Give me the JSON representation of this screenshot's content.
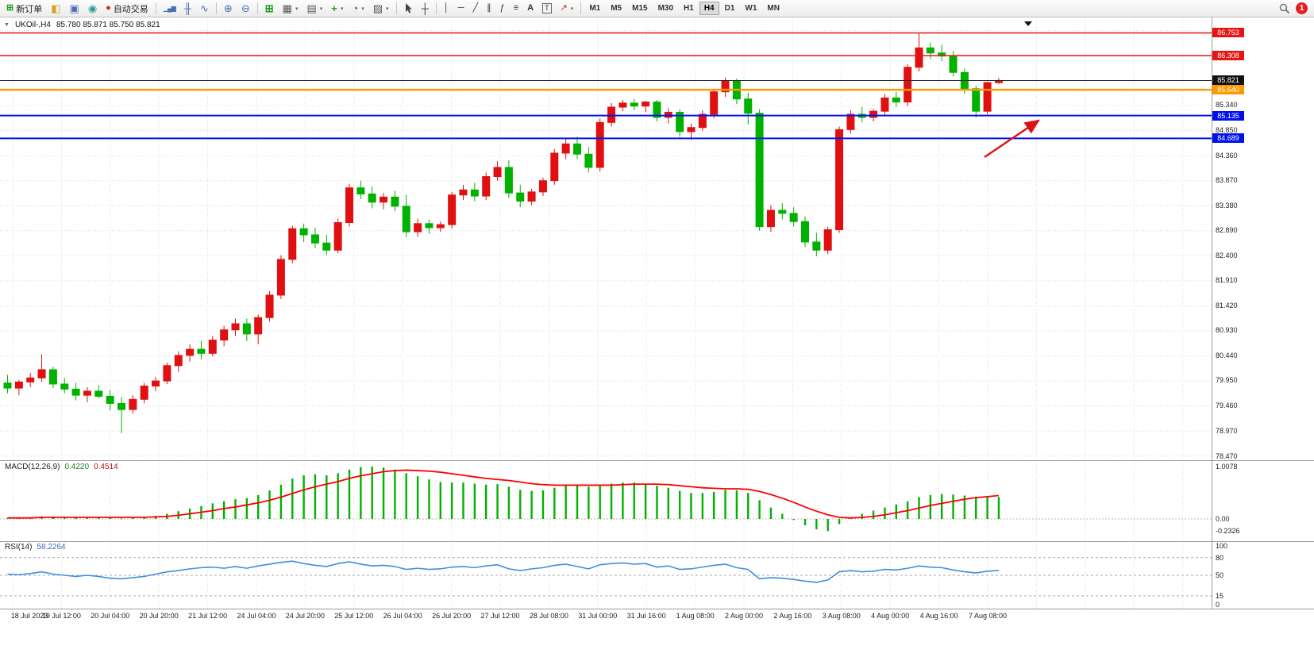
{
  "toolbar": {
    "new_order_label": "新订单",
    "auto_trading_label": "自动交易",
    "timeframes": [
      "M1",
      "M5",
      "M15",
      "M30",
      "H1",
      "H4",
      "D1",
      "W1",
      "MN"
    ],
    "active_timeframe": "H4",
    "notification_count": "1"
  },
  "icons": {
    "new_order": "⊞",
    "market_watch": "◧",
    "navigator": "▣",
    "terminal": "◉",
    "status_dot": "●",
    "bar_chart": "▁▄▆",
    "candlestick": "╫",
    "line_chart": "∿",
    "zoom_in": "⊕",
    "zoom_out": "⊖",
    "tile_windows": "⊞",
    "new_chart": "▦",
    "profiles": "▤",
    "indicators": "+",
    "periods": "◔",
    "templates": "▨",
    "crosshair": "┼",
    "vline": "│",
    "hline": "─",
    "trendline": "╱",
    "channel": "∥",
    "fibonacci": "ƒ",
    "objects_list": "≡",
    "text": "A",
    "text_label": "T",
    "arrows": "↗",
    "caret": "▾",
    "collapse": "▼"
  },
  "chart": {
    "header_symbol": "UKOil-,H4",
    "header_ohlc": "85.780 85.871 85.750 85.821",
    "price_axis": {
      "regular": [
        "85.340",
        "84.850",
        "84.360",
        "83.870",
        "83.380",
        "82.890",
        "82.400",
        "81.910",
        "81.420",
        "80.930",
        "80.440",
        "79.950",
        "79.460",
        "78.970",
        "78.470"
      ],
      "badges": [
        {
          "text": "86.753",
          "bg": "#e81414"
        },
        {
          "text": "86.308",
          "bg": "#e81414"
        },
        {
          "text": "85.821",
          "bg": "#111111"
        },
        {
          "text": "85.640",
          "bg": "#ff9900"
        },
        {
          "text": "85.135",
          "bg": "#0011ee"
        },
        {
          "text": "84.689",
          "bg": "#0011ee"
        }
      ]
    }
  },
  "colors": {
    "up": "#e01010",
    "down": "#00b200",
    "grid": "#dcdcdc",
    "macd_hist": "#00b200",
    "macd_signal": "#ff0000",
    "rsi_line": "#3f8fde",
    "current": "#222222"
  },
  "chart_data": {
    "type": "candlestick",
    "symbol": "UKOil-",
    "timeframe": "H4",
    "ohlc_current": {
      "open": "85.780",
      "high": "85.871",
      "low": "85.750",
      "close": "85.821"
    },
    "y_min": 78.45,
    "y_max": 86.9,
    "current_price": 85.821,
    "levels": [
      {
        "price": 86.753,
        "label": "86.753",
        "color": "#e81414",
        "width": 1.5
      },
      {
        "price": 86.308,
        "label": "86.308",
        "color": "#e81414",
        "width": 1.5
      },
      {
        "price": 85.64,
        "label": "85.640",
        "color": "#ff9900",
        "width": 2.5
      },
      {
        "price": 85.135,
        "label": "85.135",
        "color": "#0011ee",
        "width": 2
      },
      {
        "price": 84.689,
        "label": "84.689",
        "color": "#0011ee",
        "width": 2
      }
    ],
    "arrow": {
      "from": [
        1240,
        176
      ],
      "to": [
        1308,
        130
      ],
      "color": "#dd1111"
    },
    "candles": [
      [
        79.9,
        80.06,
        79.7,
        79.8
      ],
      [
        79.8,
        79.96,
        79.66,
        79.92
      ],
      [
        79.92,
        80.1,
        79.82,
        80.0
      ],
      [
        80.0,
        80.46,
        79.92,
        80.16
      ],
      [
        80.16,
        80.22,
        79.8,
        79.88
      ],
      [
        79.88,
        80.0,
        79.7,
        79.78
      ],
      [
        79.78,
        79.9,
        79.56,
        79.66
      ],
      [
        79.66,
        79.82,
        79.52,
        79.74
      ],
      [
        79.74,
        79.86,
        79.6,
        79.64
      ],
      [
        79.64,
        79.76,
        79.36,
        79.5
      ],
      [
        79.5,
        79.62,
        78.92,
        79.38
      ],
      [
        79.38,
        79.66,
        79.3,
        79.58
      ],
      [
        79.58,
        79.9,
        79.5,
        79.84
      ],
      [
        79.84,
        80.02,
        79.74,
        79.94
      ],
      [
        79.94,
        80.3,
        79.88,
        80.24
      ],
      [
        80.24,
        80.52,
        80.12,
        80.44
      ],
      [
        80.44,
        80.66,
        80.32,
        80.56
      ],
      [
        80.56,
        80.72,
        80.36,
        80.48
      ],
      [
        80.48,
        80.82,
        80.42,
        80.74
      ],
      [
        80.74,
        81.02,
        80.62,
        80.94
      ],
      [
        80.94,
        81.16,
        80.82,
        81.06
      ],
      [
        81.06,
        81.16,
        80.72,
        80.86
      ],
      [
        80.86,
        81.24,
        80.66,
        81.18
      ],
      [
        81.18,
        81.7,
        81.1,
        81.62
      ],
      [
        81.62,
        82.4,
        81.54,
        82.32
      ],
      [
        82.32,
        82.98,
        82.24,
        82.92
      ],
      [
        82.92,
        83.02,
        82.66,
        82.8
      ],
      [
        82.8,
        82.94,
        82.54,
        82.64
      ],
      [
        82.64,
        82.8,
        82.4,
        82.5
      ],
      [
        82.5,
        83.12,
        82.44,
        83.04
      ],
      [
        83.04,
        83.8,
        82.96,
        83.72
      ],
      [
        83.72,
        83.86,
        83.5,
        83.6
      ],
      [
        83.6,
        83.74,
        83.32,
        83.44
      ],
      [
        83.44,
        83.62,
        83.3,
        83.54
      ],
      [
        83.54,
        83.66,
        83.26,
        83.36
      ],
      [
        83.36,
        83.58,
        82.76,
        82.86
      ],
      [
        82.86,
        83.12,
        82.76,
        83.02
      ],
      [
        83.02,
        83.1,
        82.82,
        82.94
      ],
      [
        82.94,
        83.06,
        82.86,
        83.0
      ],
      [
        83.0,
        83.64,
        82.92,
        83.58
      ],
      [
        83.58,
        83.78,
        83.48,
        83.68
      ],
      [
        83.68,
        83.82,
        83.46,
        83.56
      ],
      [
        83.56,
        84.02,
        83.48,
        83.94
      ],
      [
        83.94,
        84.24,
        83.86,
        84.12
      ],
      [
        84.12,
        84.26,
        83.52,
        83.62
      ],
      [
        83.62,
        83.78,
        83.34,
        83.46
      ],
      [
        83.46,
        83.7,
        83.38,
        83.64
      ],
      [
        83.64,
        83.92,
        83.56,
        83.86
      ],
      [
        83.86,
        84.48,
        83.78,
        84.4
      ],
      [
        84.4,
        84.68,
        84.28,
        84.58
      ],
      [
        84.58,
        84.72,
        84.28,
        84.38
      ],
      [
        84.38,
        84.52,
        84.02,
        84.12
      ],
      [
        84.12,
        85.08,
        84.04,
        85.0
      ],
      [
        85.0,
        85.38,
        84.92,
        85.3
      ],
      [
        85.3,
        85.44,
        85.22,
        85.38
      ],
      [
        85.38,
        85.46,
        85.24,
        85.32
      ],
      [
        85.32,
        85.42,
        85.2,
        85.4
      ],
      [
        85.4,
        85.44,
        85.02,
        85.1
      ],
      [
        85.1,
        85.28,
        84.98,
        85.2
      ],
      [
        85.2,
        85.26,
        84.72,
        84.82
      ],
      [
        84.82,
        84.98,
        84.66,
        84.9
      ],
      [
        84.9,
        85.24,
        84.84,
        85.16
      ],
      [
        85.16,
        85.66,
        85.08,
        85.6
      ],
      [
        85.6,
        85.88,
        85.5,
        85.82
      ],
      [
        85.82,
        85.86,
        85.36,
        85.46
      ],
      [
        85.46,
        85.58,
        84.96,
        85.18
      ],
      [
        85.18,
        85.26,
        82.88,
        82.96
      ],
      [
        82.96,
        83.38,
        82.86,
        83.28
      ],
      [
        83.28,
        83.42,
        83.1,
        83.22
      ],
      [
        83.22,
        83.34,
        82.96,
        83.06
      ],
      [
        83.06,
        83.16,
        82.56,
        82.66
      ],
      [
        82.66,
        82.84,
        82.38,
        82.5
      ],
      [
        82.5,
        82.96,
        82.42,
        82.9
      ],
      [
        82.9,
        84.92,
        82.84,
        84.86
      ],
      [
        84.86,
        85.24,
        84.78,
        85.16
      ],
      [
        85.16,
        85.3,
        85.0,
        85.1
      ],
      [
        85.1,
        85.26,
        85.02,
        85.22
      ],
      [
        85.22,
        85.56,
        85.14,
        85.48
      ],
      [
        85.48,
        85.6,
        85.3,
        85.4
      ],
      [
        85.4,
        86.14,
        85.32,
        86.08
      ],
      [
        86.08,
        86.75,
        86.0,
        86.46
      ],
      [
        86.46,
        86.56,
        86.24,
        86.36
      ],
      [
        86.36,
        86.52,
        86.2,
        86.3
      ],
      [
        86.3,
        86.4,
        85.9,
        85.98
      ],
      [
        85.98,
        86.06,
        85.56,
        85.66
      ],
      [
        85.66,
        85.72,
        85.1,
        85.22
      ],
      [
        85.22,
        85.8,
        85.16,
        85.78
      ],
      [
        85.78,
        85.871,
        85.75,
        85.821
      ]
    ],
    "time_labels": [
      "18 Jul 2023",
      "19 Jul 12:00",
      "20 Jul 04:00",
      "20 Jul 20:00",
      "21 Jul 12:00",
      "24 Jul 04:00",
      "24 Jul 20:00",
      "25 Jul 12:00",
      "26 Jul 04:00",
      "26 Jul 20:00",
      "27 Jul 12:00",
      "28 Jul 08:00",
      "31 Jul 00:00",
      "31 Jul 16:00",
      "1 Aug 08:00",
      "2 Aug 00:00",
      "2 Aug 16:00",
      "3 Aug 08:00",
      "4 Aug 00:00",
      "4 Aug 16:00",
      "7 Aug 08:00"
    ],
    "indicators": {
      "macd": {
        "name": "MACD(12,26,9)",
        "main": "0.4220",
        "signal": "0.4514",
        "axis": [
          {
            "text": "1.0078",
            "v": 1.0078
          },
          {
            "text": "0.00",
            "v": 0
          },
          {
            "text": "-0.2326",
            "v": -0.2326
          }
        ],
        "range": {
          "max": 1.0078,
          "min": -0.2326
        },
        "hist": [
          0.02,
          0.02,
          0.03,
          0.05,
          0.05,
          0.04,
          0.03,
          0.03,
          0.03,
          0.02,
          0.01,
          0.02,
          0.04,
          0.06,
          0.1,
          0.15,
          0.2,
          0.25,
          0.3,
          0.34,
          0.38,
          0.4,
          0.46,
          0.55,
          0.66,
          0.78,
          0.84,
          0.86,
          0.84,
          0.88,
          0.95,
          1.0,
          1.008,
          0.99,
          0.95,
          0.88,
          0.82,
          0.76,
          0.71,
          0.7,
          0.7,
          0.68,
          0.66,
          0.67,
          0.62,
          0.56,
          0.54,
          0.55,
          0.6,
          0.65,
          0.66,
          0.62,
          0.64,
          0.68,
          0.7,
          0.7,
          0.68,
          0.64,
          0.6,
          0.54,
          0.5,
          0.5,
          0.52,
          0.56,
          0.55,
          0.5,
          0.36,
          0.22,
          0.1,
          -0.02,
          -0.12,
          -0.2,
          -0.233,
          -0.1,
          0.02,
          0.1,
          0.16,
          0.22,
          0.28,
          0.34,
          0.42,
          0.46,
          0.48,
          0.47,
          0.45,
          0.43,
          0.42,
          0.422
        ],
        "signal_line": [
          0.02,
          0.02,
          0.02,
          0.03,
          0.03,
          0.03,
          0.03,
          0.03,
          0.03,
          0.03,
          0.03,
          0.03,
          0.03,
          0.04,
          0.05,
          0.07,
          0.1,
          0.13,
          0.16,
          0.2,
          0.23,
          0.27,
          0.31,
          0.36,
          0.42,
          0.49,
          0.56,
          0.62,
          0.67,
          0.72,
          0.78,
          0.83,
          0.87,
          0.91,
          0.93,
          0.94,
          0.93,
          0.92,
          0.9,
          0.87,
          0.84,
          0.81,
          0.78,
          0.76,
          0.74,
          0.71,
          0.68,
          0.66,
          0.65,
          0.65,
          0.65,
          0.65,
          0.65,
          0.65,
          0.66,
          0.67,
          0.67,
          0.67,
          0.66,
          0.64,
          0.62,
          0.6,
          0.59,
          0.58,
          0.58,
          0.57,
          0.53,
          0.47,
          0.4,
          0.32,
          0.23,
          0.15,
          0.08,
          0.03,
          0.02,
          0.03,
          0.05,
          0.08,
          0.12,
          0.16,
          0.21,
          0.26,
          0.3,
          0.34,
          0.38,
          0.41,
          0.43,
          0.451
        ]
      },
      "rsi": {
        "name": "RSI(14)",
        "value": "58.2264",
        "axis": [
          {
            "text": "100",
            "v": 100,
            "dashed": false
          },
          {
            "text": "80",
            "v": 80,
            "dashed": true
          },
          {
            "text": "50",
            "v": 50,
            "dashed": true
          },
          {
            "text": "15",
            "v": 15,
            "dashed": true
          },
          {
            "text": "0",
            "v": 0,
            "dashed": false
          }
        ],
        "series": [
          52,
          51,
          53,
          56,
          52,
          50,
          48,
          50,
          48,
          45,
          44,
          46,
          48,
          52,
          56,
          58,
          61,
          63,
          64,
          62,
          65,
          62,
          66,
          69,
          72,
          74,
          70,
          67,
          65,
          70,
          73,
          69,
          66,
          67,
          65,
          60,
          62,
          60,
          61,
          64,
          65,
          63,
          66,
          68,
          61,
          58,
          61,
          63,
          67,
          69,
          65,
          61,
          68,
          70,
          71,
          69,
          70,
          64,
          66,
          60,
          61,
          64,
          67,
          69,
          63,
          60,
          44,
          46,
          45,
          43,
          40,
          38,
          42,
          56,
          58,
          56,
          57,
          60,
          59,
          62,
          66,
          64,
          63,
          59,
          56,
          54,
          57,
          58.2
        ]
      }
    }
  }
}
